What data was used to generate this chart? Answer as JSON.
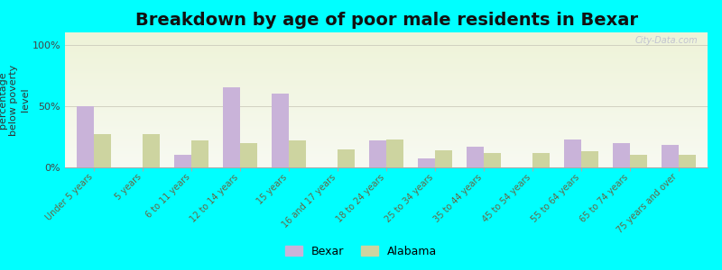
{
  "title": "Breakdown by age of poor male residents in Bexar",
  "ylabel": "percentage\nbelow poverty\nlevel",
  "categories": [
    "Under 5 years",
    "5 years",
    "6 to 11 years",
    "12 to 14 years",
    "15 years",
    "16 and 17 years",
    "18 to 24 years",
    "25 to 34 years",
    "35 to 44 years",
    "45 to 54 years",
    "55 to 64 years",
    "65 to 74 years",
    "75 years and over"
  ],
  "bexar_values": [
    50,
    0,
    10,
    65,
    60,
    0,
    22,
    7,
    17,
    0,
    23,
    20,
    18
  ],
  "alabama_values": [
    27,
    27,
    22,
    20,
    22,
    15,
    23,
    14,
    12,
    12,
    13,
    10,
    10
  ],
  "bexar_color": "#c9b3d9",
  "alabama_color": "#cdd4a0",
  "background_color": "#00ffff",
  "plot_bg_color1": "#eef3d8",
  "plot_bg_color2": "#f8faf2",
  "yticks": [
    0,
    50,
    100
  ],
  "ylim": [
    0,
    110
  ],
  "title_fontsize": 14,
  "ylabel_fontsize": 8,
  "tick_fontsize": 7,
  "legend_fontsize": 9,
  "bar_width": 0.35,
  "watermark": "City-Data.com"
}
